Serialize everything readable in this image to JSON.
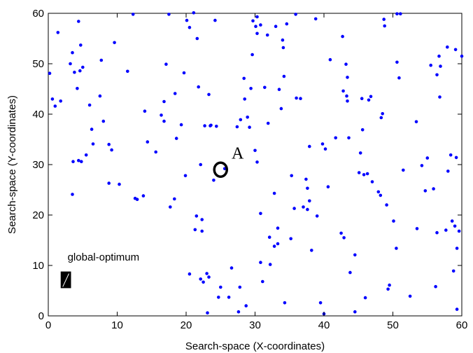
{
  "chart_data": {
    "type": "scatter",
    "title": "",
    "xlabel": "Search-space (X-coordinates)",
    "ylabel": "Search-space (Y-coordinates)",
    "xlim": [
      0,
      60
    ],
    "ylim": [
      0,
      60
    ],
    "xticks": [
      "0",
      "10",
      "20",
      "30",
      "40",
      "50",
      "60"
    ],
    "yticks": [
      "0",
      "10",
      "20",
      "30",
      "40",
      "50",
      "60"
    ],
    "grid": false,
    "point_color": "#0000ff",
    "points": [
      [
        0.2,
        48.1
      ],
      [
        0.6,
        43.0
      ],
      [
        1.0,
        41.6
      ],
      [
        1.4,
        56.2
      ],
      [
        1.8,
        42.6
      ],
      [
        3.2,
        50.0
      ],
      [
        3.5,
        52.2
      ],
      [
        3.8,
        48.3
      ],
      [
        4.2,
        45.1
      ],
      [
        4.6,
        48.6
      ],
      [
        5.0,
        49.3
      ],
      [
        4.4,
        58.4
      ],
      [
        4.7,
        53.7
      ],
      [
        3.6,
        30.6
      ],
      [
        4.4,
        30.8
      ],
      [
        4.8,
        30.6
      ],
      [
        5.5,
        31.9
      ],
      [
        3.5,
        24.1
      ],
      [
        6.0,
        41.8
      ],
      [
        6.3,
        37.0
      ],
      [
        6.5,
        34.1
      ],
      [
        7.5,
        43.6
      ],
      [
        7.7,
        50.7
      ],
      [
        8.0,
        38.6
      ],
      [
        8.8,
        34.0
      ],
      [
        9.2,
        32.9
      ],
      [
        9.6,
        54.2
      ],
      [
        8.8,
        26.3
      ],
      [
        10.3,
        26.1
      ],
      [
        11.5,
        48.5
      ],
      [
        12.3,
        59.8
      ],
      [
        12.6,
        23.3
      ],
      [
        12.9,
        23.1
      ],
      [
        13.8,
        23.8
      ],
      [
        14.0,
        40.6
      ],
      [
        14.4,
        34.5
      ],
      [
        15.6,
        32.5
      ],
      [
        16.4,
        39.8
      ],
      [
        16.8,
        38.6
      ],
      [
        16.8,
        42.5
      ],
      [
        17.1,
        49.9
      ],
      [
        17.5,
        59.8
      ],
      [
        17.7,
        21.6
      ],
      [
        18.3,
        23.2
      ],
      [
        18.4,
        44.1
      ],
      [
        18.6,
        35.2
      ],
      [
        19.3,
        37.9
      ],
      [
        19.7,
        48.2
      ],
      [
        19.9,
        27.8
      ],
      [
        20.1,
        58.6
      ],
      [
        20.5,
        57.2
      ],
      [
        20.5,
        8.3
      ],
      [
        21.1,
        60.1
      ],
      [
        21.3,
        17.1
      ],
      [
        21.5,
        19.8
      ],
      [
        21.6,
        55.0
      ],
      [
        21.8,
        45.4
      ],
      [
        22.1,
        30.0
      ],
      [
        22.1,
        7.3
      ],
      [
        22.3,
        19.1
      ],
      [
        22.3,
        16.8
      ],
      [
        22.5,
        6.7
      ],
      [
        22.7,
        37.7
      ],
      [
        23.0,
        8.4
      ],
      [
        23.1,
        0.6
      ],
      [
        23.3,
        7.7
      ],
      [
        23.3,
        43.9
      ],
      [
        23.5,
        37.7
      ],
      [
        23.6,
        37.8
      ],
      [
        24.0,
        26.9
      ],
      [
        24.2,
        58.6
      ],
      [
        24.4,
        37.6
      ],
      [
        24.7,
        3.7
      ],
      [
        25.0,
        5.7
      ],
      [
        25.6,
        29.2
      ],
      [
        26.2,
        3.7
      ],
      [
        26.6,
        9.5
      ],
      [
        27.4,
        37.5
      ],
      [
        27.6,
        0.8
      ],
      [
        27.8,
        5.7
      ],
      [
        27.9,
        38.9
      ],
      [
        28.4,
        47.1
      ],
      [
        28.5,
        43.0
      ],
      [
        28.7,
        2.0
      ],
      [
        28.9,
        39.4
      ],
      [
        29.2,
        37.4
      ],
      [
        29.4,
        45.1
      ],
      [
        29.6,
        51.8
      ],
      [
        29.7,
        58.5
      ],
      [
        30.0,
        32.8
      ],
      [
        30.1,
        57.4
      ],
      [
        30.3,
        56.0
      ],
      [
        30.3,
        59.3
      ],
      [
        30.3,
        30.5
      ],
      [
        30.8,
        57.7
      ],
      [
        30.8,
        10.6
      ],
      [
        30.8,
        20.3
      ],
      [
        31.1,
        6.8
      ],
      [
        31.4,
        45.3
      ],
      [
        31.8,
        55.7
      ],
      [
        31.9,
        38.2
      ],
      [
        32.1,
        15.6
      ],
      [
        32.2,
        10.2
      ],
      [
        32.8,
        24.3
      ],
      [
        32.8,
        13.8
      ],
      [
        33.0,
        57.4
      ],
      [
        33.3,
        17.4
      ],
      [
        33.3,
        14.3
      ],
      [
        33.5,
        44.9
      ],
      [
        33.8,
        41.1
      ],
      [
        34.0,
        54.7
      ],
      [
        34.1,
        53.2
      ],
      [
        34.2,
        47.5
      ],
      [
        34.3,
        2.6
      ],
      [
        34.6,
        57.9
      ],
      [
        35.2,
        15.3
      ],
      [
        35.3,
        27.8
      ],
      [
        35.7,
        21.3
      ],
      [
        35.9,
        59.8
      ],
      [
        36.0,
        43.2
      ],
      [
        36.6,
        43.1
      ],
      [
        37.0,
        21.6
      ],
      [
        37.4,
        27.1
      ],
      [
        37.6,
        25.3
      ],
      [
        37.6,
        21.1
      ],
      [
        37.9,
        33.6
      ],
      [
        37.9,
        22.8
      ],
      [
        38.2,
        13.0
      ],
      [
        38.8,
        58.9
      ],
      [
        39.0,
        19.8
      ],
      [
        39.5,
        2.6
      ],
      [
        39.8,
        34.1
      ],
      [
        40.0,
        0.4
      ],
      [
        40.2,
        33.1
      ],
      [
        40.6,
        25.6
      ],
      [
        40.9,
        50.8
      ],
      [
        41.7,
        35.3
      ],
      [
        42.5,
        16.4
      ],
      [
        42.8,
        44.6
      ],
      [
        42.9,
        15.5
      ],
      [
        42.7,
        55.4
      ],
      [
        43.2,
        49.9
      ],
      [
        43.3,
        43.6
      ],
      [
        43.4,
        47.3
      ],
      [
        43.4,
        42.6
      ],
      [
        43.6,
        35.3
      ],
      [
        43.8,
        8.6
      ],
      [
        44.5,
        12.1
      ],
      [
        44.5,
        0.8
      ],
      [
        45.1,
        28.4
      ],
      [
        45.3,
        32.3
      ],
      [
        45.5,
        43.1
      ],
      [
        45.6,
        36.9
      ],
      [
        45.8,
        28.0
      ],
      [
        46.0,
        3.6
      ],
      [
        46.3,
        28.2
      ],
      [
        46.5,
        42.8
      ],
      [
        46.8,
        43.5
      ],
      [
        47.0,
        26.6
      ],
      [
        47.9,
        24.6
      ],
      [
        48.2,
        23.9
      ],
      [
        48.3,
        39.3
      ],
      [
        48.5,
        40.1
      ],
      [
        48.7,
        58.8
      ],
      [
        48.8,
        57.5
      ],
      [
        49.1,
        22.0
      ],
      [
        49.3,
        5.3
      ],
      [
        49.5,
        6.1
      ],
      [
        50.1,
        18.8
      ],
      [
        50.5,
        13.4
      ],
      [
        50.6,
        50.3
      ],
      [
        50.9,
        47.2
      ],
      [
        50.6,
        59.9
      ],
      [
        51.1,
        59.9
      ],
      [
        51.5,
        28.9
      ],
      [
        52.5,
        3.9
      ],
      [
        53.5,
        17.3
      ],
      [
        53.4,
        38.5
      ],
      [
        54.2,
        29.8
      ],
      [
        54.7,
        24.8
      ],
      [
        55.0,
        31.3
      ],
      [
        55.5,
        49.7
      ],
      [
        55.9,
        25.2
      ],
      [
        56.2,
        5.8
      ],
      [
        56.4,
        16.5
      ],
      [
        56.4,
        47.8
      ],
      [
        56.7,
        51.5
      ],
      [
        56.8,
        43.4
      ],
      [
        56.9,
        49.5
      ],
      [
        57.7,
        17.0
      ],
      [
        57.9,
        53.3
      ],
      [
        58.0,
        28.7
      ],
      [
        58.4,
        31.9
      ],
      [
        58.6,
        18.8
      ],
      [
        58.8,
        8.9
      ],
      [
        59.0,
        17.8
      ],
      [
        59.1,
        52.8
      ],
      [
        59.2,
        31.4
      ],
      [
        59.3,
        13.4
      ],
      [
        59.3,
        1.3
      ],
      [
        59.6,
        16.8
      ],
      [
        60.0,
        51.5
      ]
    ],
    "annotations": {
      "global_optimum_label": "global-optimum",
      "marker_label": "A"
    }
  }
}
